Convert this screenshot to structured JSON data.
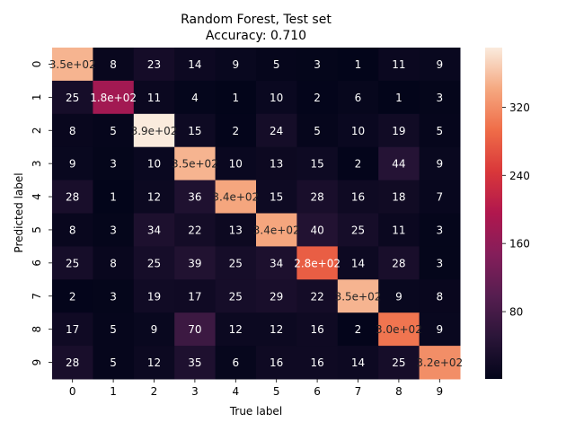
{
  "chart_data": {
    "type": "heatmap",
    "title_line1": "Random Forest, Test set",
    "title_line2": "Accuracy: 0.710",
    "xlabel": "True label",
    "ylabel": "Predicted label",
    "x_categories": [
      "0",
      "1",
      "2",
      "3",
      "4",
      "5",
      "6",
      "7",
      "8",
      "9"
    ],
    "y_categories": [
      "0",
      "1",
      "2",
      "3",
      "4",
      "5",
      "6",
      "7",
      "8",
      "9"
    ],
    "values": [
      [
        350,
        8,
        23,
        14,
        9,
        5,
        3,
        1,
        11,
        9
      ],
      [
        25,
        180,
        11,
        4,
        1,
        10,
        2,
        6,
        1,
        3
      ],
      [
        8,
        5,
        390,
        15,
        2,
        24,
        5,
        10,
        19,
        5
      ],
      [
        9,
        3,
        10,
        350,
        10,
        13,
        15,
        2,
        44,
        9
      ],
      [
        28,
        1,
        12,
        36,
        340,
        15,
        28,
        16,
        18,
        7
      ],
      [
        8,
        3,
        34,
        22,
        13,
        340,
        40,
        25,
        11,
        3
      ],
      [
        25,
        8,
        25,
        39,
        25,
        34,
        280,
        14,
        28,
        3
      ],
      [
        2,
        3,
        19,
        17,
        25,
        29,
        22,
        350,
        9,
        8
      ],
      [
        17,
        5,
        9,
        70,
        12,
        12,
        16,
        2,
        300,
        9
      ],
      [
        28,
        5,
        12,
        35,
        6,
        16,
        16,
        14,
        25,
        320
      ]
    ],
    "cell_labels": [
      [
        "3.5e+02",
        "8",
        "23",
        "14",
        "9",
        "5",
        "3",
        "1",
        "11",
        "9"
      ],
      [
        "25",
        "1.8e+02",
        "11",
        "4",
        "1",
        "10",
        "2",
        "6",
        "1",
        "3"
      ],
      [
        "8",
        "5",
        "3.9e+02",
        "15",
        "2",
        "24",
        "5",
        "10",
        "19",
        "5"
      ],
      [
        "9",
        "3",
        "10",
        "3.5e+02",
        "10",
        "13",
        "15",
        "2",
        "44",
        "9"
      ],
      [
        "28",
        "1",
        "12",
        "36",
        "3.4e+02",
        "15",
        "28",
        "16",
        "18",
        "7"
      ],
      [
        "8",
        "3",
        "34",
        "22",
        "13",
        "3.4e+02",
        "40",
        "25",
        "11",
        "3"
      ],
      [
        "25",
        "8",
        "25",
        "39",
        "25",
        "34",
        "2.8e+02",
        "14",
        "28",
        "3"
      ],
      [
        "2",
        "3",
        "19",
        "17",
        "25",
        "29",
        "22",
        "3.5e+02",
        "9",
        "8"
      ],
      [
        "17",
        "5",
        "9",
        "70",
        "12",
        "12",
        "16",
        "2",
        "3.0e+02",
        "9"
      ],
      [
        "28",
        "5",
        "12",
        "35",
        "6",
        "16",
        "16",
        "14",
        "25",
        "3.2e+02"
      ]
    ],
    "colormap": "rocket",
    "vmin": 1,
    "vmax": 390,
    "colorbar_ticks": [
      80,
      160,
      240,
      320
    ],
    "colorbar_tick_labels": [
      "80",
      "160",
      "240",
      "320"
    ],
    "grid": false
  }
}
